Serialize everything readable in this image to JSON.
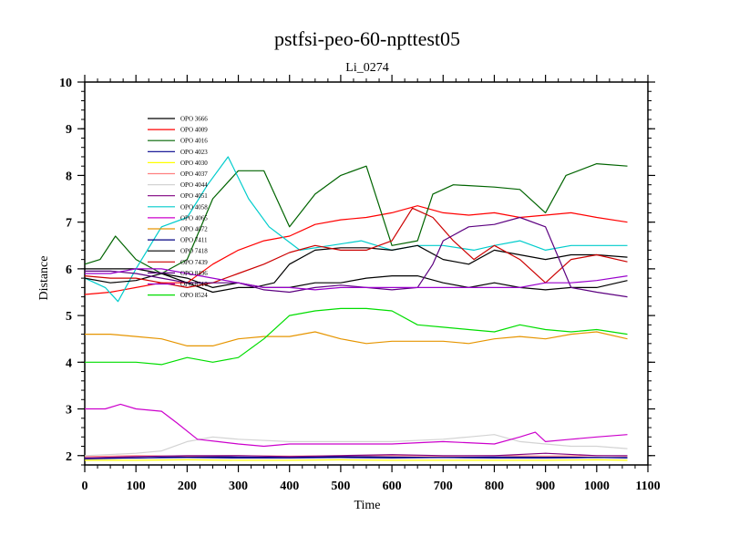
{
  "chart_data": {
    "type": "line",
    "title": "pstfsi-peo-60-npttest05",
    "subtitle": "Li_0274",
    "xlabel": "Time",
    "ylabel": "Distance",
    "xlim": [
      0,
      1100
    ],
    "ylim": [
      1.8,
      10
    ],
    "xticks": [
      0,
      100,
      200,
      300,
      400,
      500,
      600,
      700,
      800,
      900,
      1000,
      1100
    ],
    "yticks": [
      2,
      3,
      4,
      5,
      6,
      7,
      8,
      9,
      10
    ],
    "legend_position": "upper-left-inside",
    "series": [
      {
        "name": "OPO 3666",
        "color": "#000000",
        "x": [
          0,
          50,
          100,
          150,
          200,
          250,
          300,
          350,
          400,
          450,
          500,
          550,
          600,
          650,
          700,
          750,
          800,
          850,
          900,
          950,
          1000,
          1060
        ],
        "y": [
          6.0,
          6.0,
          6.0,
          5.9,
          5.8,
          5.6,
          5.7,
          5.6,
          5.6,
          5.7,
          5.7,
          5.8,
          5.85,
          5.85,
          5.7,
          5.6,
          5.7,
          5.6,
          5.55,
          5.6,
          5.6,
          5.75
        ]
      },
      {
        "name": "OPO 4009",
        "color": "#ff0000",
        "x": [
          0,
          50,
          100,
          150,
          200,
          250,
          300,
          350,
          400,
          450,
          500,
          550,
          600,
          650,
          700,
          750,
          800,
          850,
          900,
          950,
          1000,
          1060
        ],
        "y": [
          5.45,
          5.5,
          5.6,
          5.7,
          5.7,
          6.1,
          6.4,
          6.6,
          6.7,
          6.95,
          7.05,
          7.1,
          7.2,
          7.35,
          7.2,
          7.15,
          7.2,
          7.1,
          7.15,
          7.2,
          7.1,
          7.0
        ]
      },
      {
        "name": "OPO 4016",
        "color": "#006400",
        "x": [
          0,
          30,
          60,
          100,
          150,
          200,
          250,
          300,
          350,
          400,
          450,
          500,
          550,
          600,
          650,
          680,
          720,
          800,
          850,
          900,
          940,
          1000,
          1060
        ],
        "y": [
          6.1,
          6.2,
          6.7,
          6.2,
          5.9,
          6.2,
          7.5,
          8.1,
          8.1,
          6.9,
          7.6,
          8.0,
          8.2,
          6.5,
          6.6,
          7.6,
          7.8,
          7.75,
          7.7,
          7.2,
          8.0,
          8.25,
          8.2
        ]
      },
      {
        "name": "OPO 4023",
        "color": "#00008b",
        "x": [
          0,
          100,
          200,
          300,
          400,
          500,
          600,
          700,
          800,
          900,
          1000,
          1060
        ],
        "y": [
          1.95,
          1.95,
          1.98,
          1.97,
          1.96,
          1.98,
          1.97,
          1.96,
          1.97,
          1.97,
          1.96,
          1.96
        ]
      },
      {
        "name": "OPO 4030",
        "color": "#ffff00",
        "x": [
          0,
          100,
          200,
          300,
          400,
          500,
          600,
          700,
          800,
          900,
          1000,
          1060
        ],
        "y": [
          1.9,
          1.9,
          1.91,
          1.9,
          1.9,
          1.91,
          1.9,
          1.9,
          1.9,
          1.9,
          1.91,
          1.9
        ]
      },
      {
        "name": "OPO 4037",
        "color": "#ff8080",
        "x": [
          0,
          100,
          200,
          300,
          400,
          500,
          600,
          700,
          800,
          900,
          1000,
          1060
        ],
        "y": [
          1.98,
          2.0,
          1.99,
          2.0,
          1.99,
          2.0,
          2.0,
          1.99,
          2.0,
          1.99,
          2.0,
          1.99
        ]
      },
      {
        "name": "OPO 4044",
        "color": "#d3d3d3",
        "x": [
          0,
          100,
          150,
          200,
          250,
          300,
          400,
          500,
          600,
          700,
          750,
          800,
          850,
          900,
          950,
          1000,
          1060
        ],
        "y": [
          2.0,
          2.05,
          2.1,
          2.3,
          2.4,
          2.35,
          2.3,
          2.3,
          2.3,
          2.35,
          2.4,
          2.45,
          2.3,
          2.25,
          2.2,
          2.2,
          2.15
        ]
      },
      {
        "name": "OPO 4051",
        "color": "#800080",
        "x": [
          0,
          100,
          200,
          300,
          400,
          500,
          600,
          700,
          800,
          900,
          1000,
          1060
        ],
        "y": [
          1.95,
          1.98,
          2.0,
          2.0,
          1.98,
          2.0,
          2.02,
          2.0,
          2.0,
          2.05,
          2.0,
          2.0
        ]
      },
      {
        "name": "OPO 4058",
        "color": "#00cccc",
        "x": [
          0,
          40,
          65,
          100,
          150,
          200,
          240,
          280,
          320,
          360,
          420,
          480,
          540,
          600,
          650,
          700,
          760,
          800,
          850,
          900,
          950,
          1000,
          1060
        ],
        "y": [
          5.8,
          5.6,
          5.3,
          6.0,
          6.9,
          7.1,
          7.8,
          8.4,
          7.5,
          6.9,
          6.4,
          6.5,
          6.6,
          6.4,
          6.5,
          6.5,
          6.4,
          6.5,
          6.6,
          6.4,
          6.5,
          6.5,
          6.5
        ]
      },
      {
        "name": "OPO 4065",
        "color": "#cc00cc",
        "x": [
          0,
          40,
          70,
          100,
          150,
          180,
          220,
          260,
          300,
          350,
          400,
          500,
          600,
          700,
          800,
          850,
          880,
          900,
          950,
          1000,
          1060
        ],
        "y": [
          3.0,
          3.0,
          3.1,
          3.0,
          2.95,
          2.7,
          2.35,
          2.3,
          2.25,
          2.2,
          2.25,
          2.25,
          2.25,
          2.3,
          2.25,
          2.4,
          2.5,
          2.3,
          2.35,
          2.4,
          2.45
        ]
      },
      {
        "name": "OPO 4072",
        "color": "#e69500",
        "x": [
          0,
          50,
          100,
          150,
          200,
          250,
          300,
          350,
          400,
          450,
          500,
          550,
          600,
          650,
          700,
          750,
          800,
          850,
          900,
          950,
          1000,
          1060
        ],
        "y": [
          4.6,
          4.6,
          4.55,
          4.5,
          4.35,
          4.35,
          4.5,
          4.55,
          4.55,
          4.65,
          4.5,
          4.4,
          4.45,
          4.45,
          4.45,
          4.4,
          4.5,
          4.55,
          4.5,
          4.6,
          4.65,
          4.5
        ]
      },
      {
        "name": "OPO 7411",
        "color": "#000080",
        "x": [
          0,
          100,
          200,
          300,
          400,
          500,
          600,
          700,
          800,
          900,
          1000,
          1060
        ],
        "y": [
          1.93,
          1.95,
          1.96,
          1.95,
          1.95,
          1.96,
          1.95,
          1.96,
          1.95,
          1.95,
          1.96,
          1.95
        ]
      },
      {
        "name": "OPO 7418",
        "color": "#000000",
        "x": [
          0,
          50,
          100,
          150,
          200,
          250,
          300,
          330,
          370,
          400,
          450,
          500,
          550,
          600,
          650,
          700,
          750,
          800,
          850,
          900,
          950,
          1000,
          1060
        ],
        "y": [
          5.8,
          5.7,
          5.75,
          5.9,
          5.7,
          5.5,
          5.6,
          5.6,
          5.7,
          6.1,
          6.4,
          6.45,
          6.45,
          6.4,
          6.5,
          6.2,
          6.1,
          6.4,
          6.3,
          6.2,
          6.3,
          6.3,
          6.25
        ]
      },
      {
        "name": "OPO 7439",
        "color": "#cc0000",
        "x": [
          0,
          50,
          100,
          150,
          200,
          250,
          300,
          350,
          400,
          450,
          500,
          550,
          600,
          640,
          680,
          720,
          760,
          800,
          850,
          900,
          950,
          1000,
          1060
        ],
        "y": [
          5.85,
          5.8,
          5.8,
          5.7,
          5.6,
          5.7,
          5.9,
          6.1,
          6.35,
          6.5,
          6.4,
          6.4,
          6.6,
          7.3,
          7.1,
          6.6,
          6.2,
          6.5,
          6.2,
          5.7,
          6.2,
          6.3,
          6.15
        ]
      },
      {
        "name": "OPO 8496",
        "color": "#5c0080",
        "x": [
          0,
          50,
          100,
          150,
          200,
          250,
          300,
          350,
          400,
          450,
          500,
          550,
          600,
          650,
          680,
          700,
          750,
          800,
          850,
          900,
          950,
          1000,
          1060
        ],
        "y": [
          5.95,
          5.95,
          5.9,
          5.8,
          5.7,
          5.7,
          5.7,
          5.55,
          5.5,
          5.6,
          5.65,
          5.6,
          5.55,
          5.6,
          6.1,
          6.6,
          6.9,
          6.95,
          7.1,
          6.9,
          5.6,
          5.5,
          5.4
        ]
      },
      {
        "name": "OPO 8510",
        "color": "#9900cc",
        "x": [
          0,
          50,
          100,
          150,
          200,
          250,
          300,
          350,
          400,
          450,
          500,
          550,
          600,
          650,
          700,
          750,
          800,
          850,
          900,
          950,
          1000,
          1060
        ],
        "y": [
          5.9,
          5.9,
          6.0,
          6.0,
          5.9,
          5.8,
          5.7,
          5.6,
          5.6,
          5.55,
          5.6,
          5.6,
          5.6,
          5.6,
          5.6,
          5.6,
          5.6,
          5.6,
          5.7,
          5.7,
          5.75,
          5.85
        ]
      },
      {
        "name": "OPO 8524",
        "color": "#00dd00",
        "x": [
          0,
          50,
          100,
          150,
          200,
          250,
          300,
          350,
          400,
          450,
          500,
          550,
          600,
          650,
          700,
          750,
          800,
          850,
          900,
          950,
          1000,
          1060
        ],
        "y": [
          4.0,
          4.0,
          4.0,
          3.95,
          4.1,
          4.0,
          4.1,
          4.5,
          5.0,
          5.1,
          5.15,
          5.15,
          5.1,
          4.8,
          4.75,
          4.7,
          4.65,
          4.8,
          4.7,
          4.65,
          4.7,
          4.6
        ]
      }
    ]
  }
}
